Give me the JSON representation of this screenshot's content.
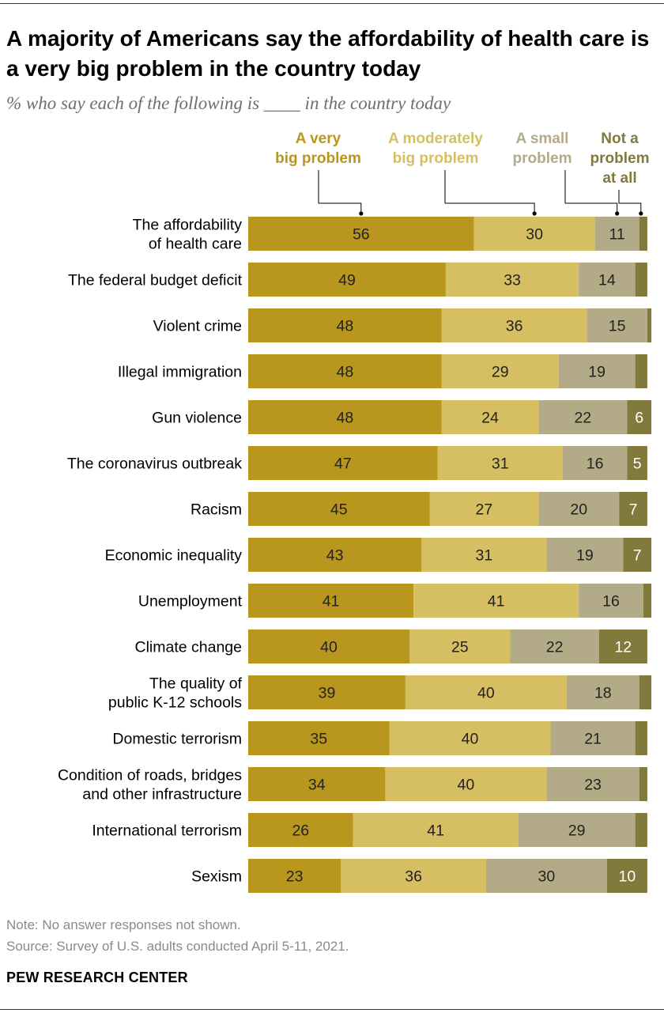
{
  "title": "A majority of Americans say the affordability of health care is a very big problem in the country today",
  "subtitle": "% who say each of the following is ____ in the country today",
  "legend": [
    {
      "line1": "A very",
      "line2": "big problem",
      "color": "#b9961d"
    },
    {
      "line1": "A moderately",
      "line2": "big problem",
      "color": "#d6bf62"
    },
    {
      "line1": "A small",
      "line2": "problem",
      "color": "#b3ab88"
    },
    {
      "line1": "Not a",
      "line2": "problem",
      "line3": "at all",
      "color": "#827a3d"
    }
  ],
  "chart_data": {
    "type": "bar",
    "orientation": "horizontal",
    "stacked": true,
    "xlim": [
      0,
      100
    ],
    "categories": [
      [
        "The affordability",
        "of health care"
      ],
      [
        "The federal budget deficit"
      ],
      [
        "Violent crime"
      ],
      [
        "Illegal immigration"
      ],
      [
        "Gun violence"
      ],
      [
        "The coronavirus outbreak"
      ],
      [
        "Racism"
      ],
      [
        "Economic inequality"
      ],
      [
        "Unemployment"
      ],
      [
        "Climate change"
      ],
      [
        "The quality of",
        "public K-12 schools"
      ],
      [
        "Domestic terrorism"
      ],
      [
        "Condition of roads, bridges",
        "and other infrastructure"
      ],
      [
        "International terrorism"
      ],
      [
        "Sexism"
      ]
    ],
    "series": [
      {
        "name": "A very big problem",
        "color": "#b9961d",
        "values": [
          56,
          49,
          48,
          48,
          48,
          47,
          45,
          43,
          41,
          40,
          39,
          35,
          34,
          26,
          23
        ]
      },
      {
        "name": "A moderately big problem",
        "color": "#d6bf62",
        "values": [
          30,
          33,
          36,
          29,
          24,
          31,
          27,
          31,
          41,
          25,
          40,
          40,
          40,
          41,
          36
        ]
      },
      {
        "name": "A small problem",
        "color": "#b3ab88",
        "values": [
          11,
          14,
          15,
          19,
          22,
          16,
          20,
          19,
          16,
          22,
          18,
          21,
          23,
          29,
          30
        ]
      },
      {
        "name": "Not a problem at all",
        "color": "#827a3d",
        "values": [
          2,
          3,
          1,
          3,
          6,
          5,
          7,
          7,
          2,
          12,
          3,
          3,
          2,
          3,
          10
        ]
      }
    ],
    "data_labels": [
      [
        "56",
        "30",
        "11",
        ""
      ],
      [
        "49",
        "33",
        "14",
        ""
      ],
      [
        "48",
        "36",
        "15",
        ""
      ],
      [
        "48",
        "29",
        "19",
        ""
      ],
      [
        "48",
        "24",
        "22",
        "6"
      ],
      [
        "47",
        "31",
        "16",
        "5"
      ],
      [
        "45",
        "27",
        "20",
        "7"
      ],
      [
        "43",
        "31",
        "19",
        "7"
      ],
      [
        "41",
        "41",
        "16",
        ""
      ],
      [
        "40",
        "25",
        "22",
        "12"
      ],
      [
        "39",
        "40",
        "18",
        ""
      ],
      [
        "35",
        "40",
        "21",
        ""
      ],
      [
        "34",
        "40",
        "23",
        ""
      ],
      [
        "26",
        "41",
        "29",
        ""
      ],
      [
        "23",
        "36",
        "30",
        "10"
      ]
    ]
  },
  "footer": {
    "note": "Note: No answer responses not shown.",
    "source": "Source: Survey of U.S. adults conducted April 5-11, 2021.",
    "org": "PEW RESEARCH CENTER"
  }
}
